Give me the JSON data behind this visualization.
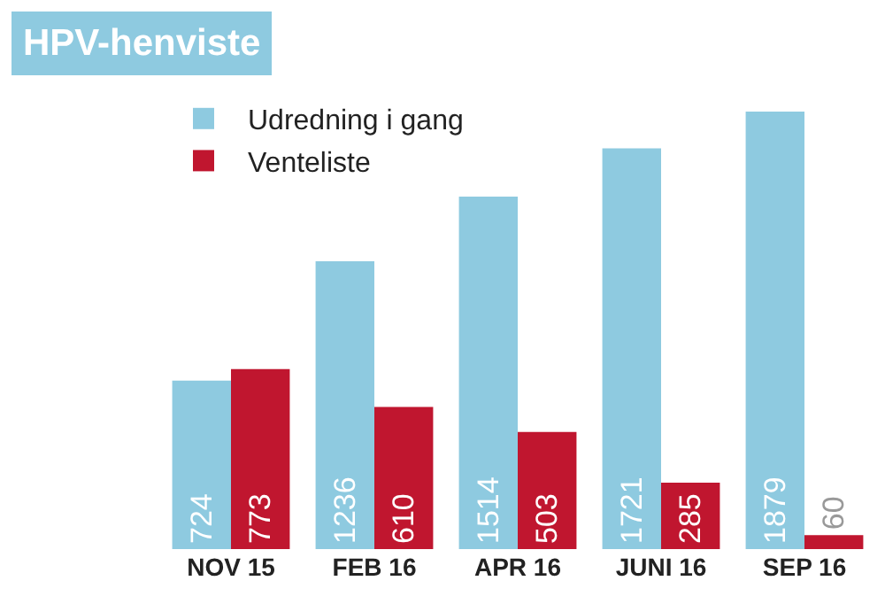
{
  "chart_data": {
    "type": "bar",
    "title": "HPV-henviste",
    "categories": [
      "NOV 15",
      "FEB 16",
      "APR 16",
      "JUNI 16",
      "SEP 16"
    ],
    "series": [
      {
        "name": "Udredning i gang",
        "color": "#8ecae0",
        "values": [
          724,
          1236,
          1514,
          1721,
          1879
        ]
      },
      {
        "name": "Venteliste",
        "color": "#c0162f",
        "values": [
          773,
          610,
          503,
          285,
          60
        ]
      }
    ],
    "data_labels": true,
    "tick_labels": "x",
    "legend": "top left",
    "grid": false
  }
}
